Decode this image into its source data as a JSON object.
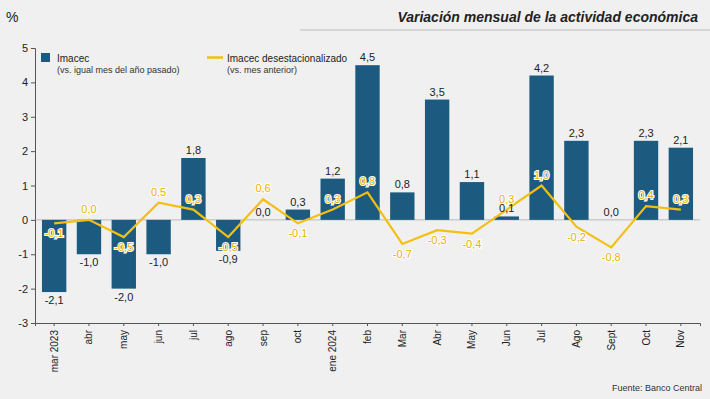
{
  "chart_data": {
    "type": "bar",
    "title": "Variación mensual de la actividad económica",
    "ylabel": "%",
    "source": "Fuente: Banco Central",
    "categories": [
      "mar 2023",
      "abr",
      "may",
      "jun",
      "jul",
      "ago",
      "sep",
      "oct",
      "ene 2024",
      "feb",
      "Mar",
      "Abr",
      "May",
      "Jun",
      "Jul",
      "Ago",
      "Sept",
      "Oct",
      "Nov"
    ],
    "series": [
      {
        "name": "Imacec",
        "description": "(vs. igual mes del año pasado)",
        "type": "bar",
        "color": "#1d5a80",
        "values": [
          -2.1,
          -1.0,
          -2.0,
          -1.0,
          1.8,
          -0.9,
          0.0,
          0.3,
          1.2,
          4.5,
          0.8,
          3.5,
          1.1,
          0.1,
          4.2,
          2.3,
          0.0,
          2.3,
          2.1
        ],
        "value_labels": [
          "-2,1",
          "-1,0",
          "-2,0",
          "-1,0",
          "1,8",
          "-0,9",
          "0,0",
          "0,3",
          "1,2",
          "4,5",
          "0,8",
          "3,5",
          "1,1",
          "0,1",
          "4,2",
          "2,3",
          "0,0",
          "2,3",
          "2,1"
        ]
      },
      {
        "name": "Imacec desestacionalizado",
        "description": "(vs. mes anterior)",
        "type": "line",
        "color": "#f3c012",
        "values": [
          -0.1,
          0.0,
          -0.5,
          0.5,
          0.3,
          -0.5,
          0.6,
          -0.1,
          0.3,
          0.8,
          -0.7,
          -0.3,
          -0.4,
          0.3,
          1.0,
          -0.2,
          -0.8,
          0.4,
          0.3
        ],
        "value_labels": [
          "-0,1",
          "0,0",
          "-0,5",
          "0,5",
          "0,3",
          "-0,5",
          "0,6",
          "-0,1",
          "0,3",
          "0,8",
          "-0,7",
          "-0,3",
          "-0,4",
          "0,3",
          "1,0",
          "-0,2",
          "-0,8",
          "0,4",
          "0,3"
        ]
      }
    ],
    "ylim": [
      -3,
      5
    ],
    "yticks": [
      -3,
      -2,
      -1,
      0,
      1,
      2,
      3,
      4,
      5
    ],
    "data_labels": true,
    "legend": "top-left",
    "grid": false
  }
}
